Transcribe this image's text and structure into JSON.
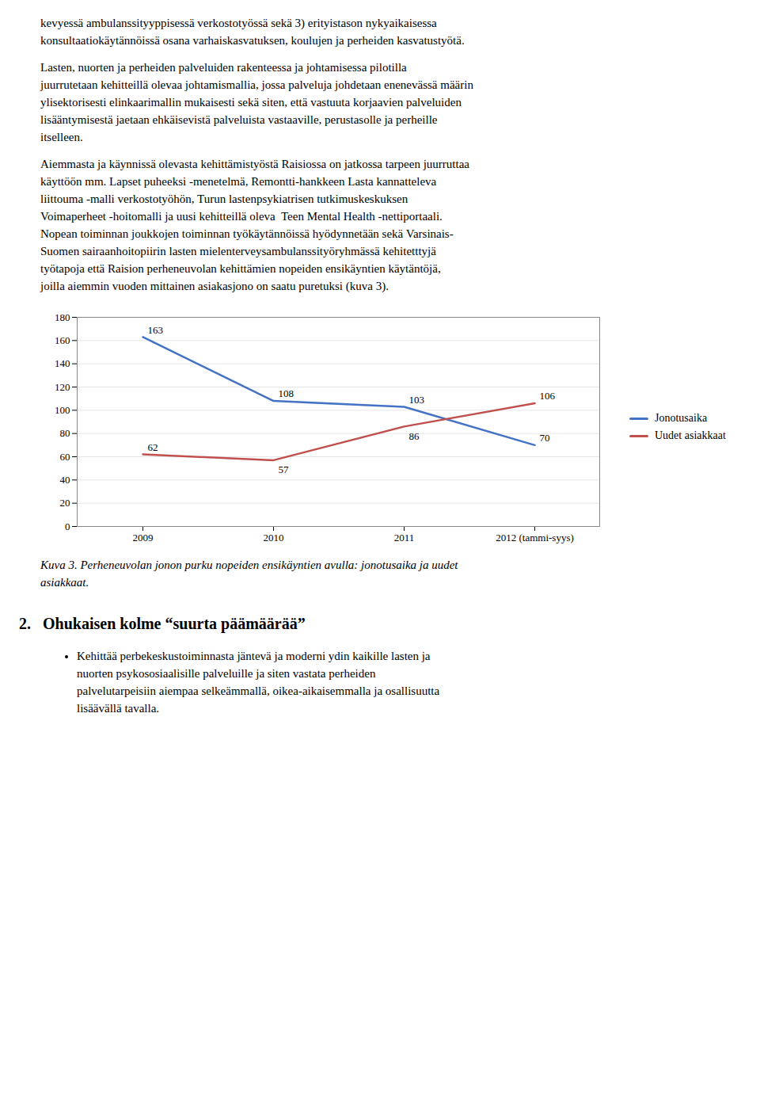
{
  "text_before": [
    [
      "kevyessä ambulanssityyppisessä verkostotyössä sekä 3) erityistason nykyaikaisessa",
      "konsultaatiokäytännöissä osana varhaiskasvatuksen, koulujen ja perheiden kasvatustyötä."
    ],
    [
      "Lasten, nuorten ja perheiden palveluiden rakenteessa ja johtamisessa pilotilla",
      "juurrutetaan kehitteillä olevaa johtamismallia, jossa palveluja johdetaan enenevässä määrin",
      "ylisektorisesti elinkaarimallin mukaisesti sekä siten, että vastuuta korjaavien palveluiden",
      "lisääntymisestä jaetaan ehkäisevistä palveluista vastaaville, perustasolle ja perheille",
      "itselleen."
    ],
    [
      "Aiemmasta ja käynnissä olevasta kehittämistyöstä Raisiossa on jatkossa tarpeen juurruttaa",
      "käyttöön mm. Lapset puheeksi -menetelmä, Remontti-hankkeen Lasta kannatteleva",
      "liittouma -malli verkostotyöhön, Turun lastenpsykiatrisen tutkimuskeskuksen",
      "Voimaperheet -hoitomalli ja uusi kehitteillä oleva  Teen Mental Health -nettiportaali.",
      "Nopean toiminnan joukkojen toiminnan työkäytännöissä hyödynnetään sekä Varsinais-",
      "Suomen sairaanhoitopiirin lasten mielenterveysambulanssityöryhmässä kehitetttyjä",
      "työtapoja että Raision perheneuvolan kehittämien nopeiden ensikäyntien käytäntöjä,",
      "joilla aiemmin vuoden mittainen asiakasjono on saatu puretuksi (kuva 3)."
    ]
  ],
  "chart_data": {
    "type": "line",
    "categories": [
      "2009",
      "2010",
      "2011",
      "2012 (tammi-syys)"
    ],
    "series": [
      {
        "name": "Jonotusaika",
        "color": "#4472C4",
        "values": [
          163,
          108,
          103,
          70
        ]
      },
      {
        "name": "Uudet asiakkaat",
        "color": "#C0504D",
        "values": [
          62,
          57,
          86,
          106
        ]
      }
    ],
    "ylim": [
      0,
      180
    ],
    "yticks": [
      0,
      20,
      40,
      60,
      80,
      100,
      120,
      140,
      160,
      180
    ],
    "grid": true,
    "legend": "right",
    "data_labels": true,
    "caption": [
      "Kuva 3. Perheneuvolan jonon purku nopeiden ensikäyntien avulla: jonotusaika ja uudet",
      "asiakkaat."
    ]
  },
  "text_after": {
    "heading": "2.  Ohukaisen kolme “suurta päämäärää”",
    "bullet": [
      "Kehittää perbekeskustoiminnasta jäntevä ja moderni ydin kaikille lasten ja",
      "nuorten psykososiaalisille palveluille ja siten vastata perheiden",
      "palvelutarpeisiin aiempaa selkeämmallä, oikea-aikaisemmalla ja osallisuutta",
      "lisäävällä tavalla."
    ]
  }
}
